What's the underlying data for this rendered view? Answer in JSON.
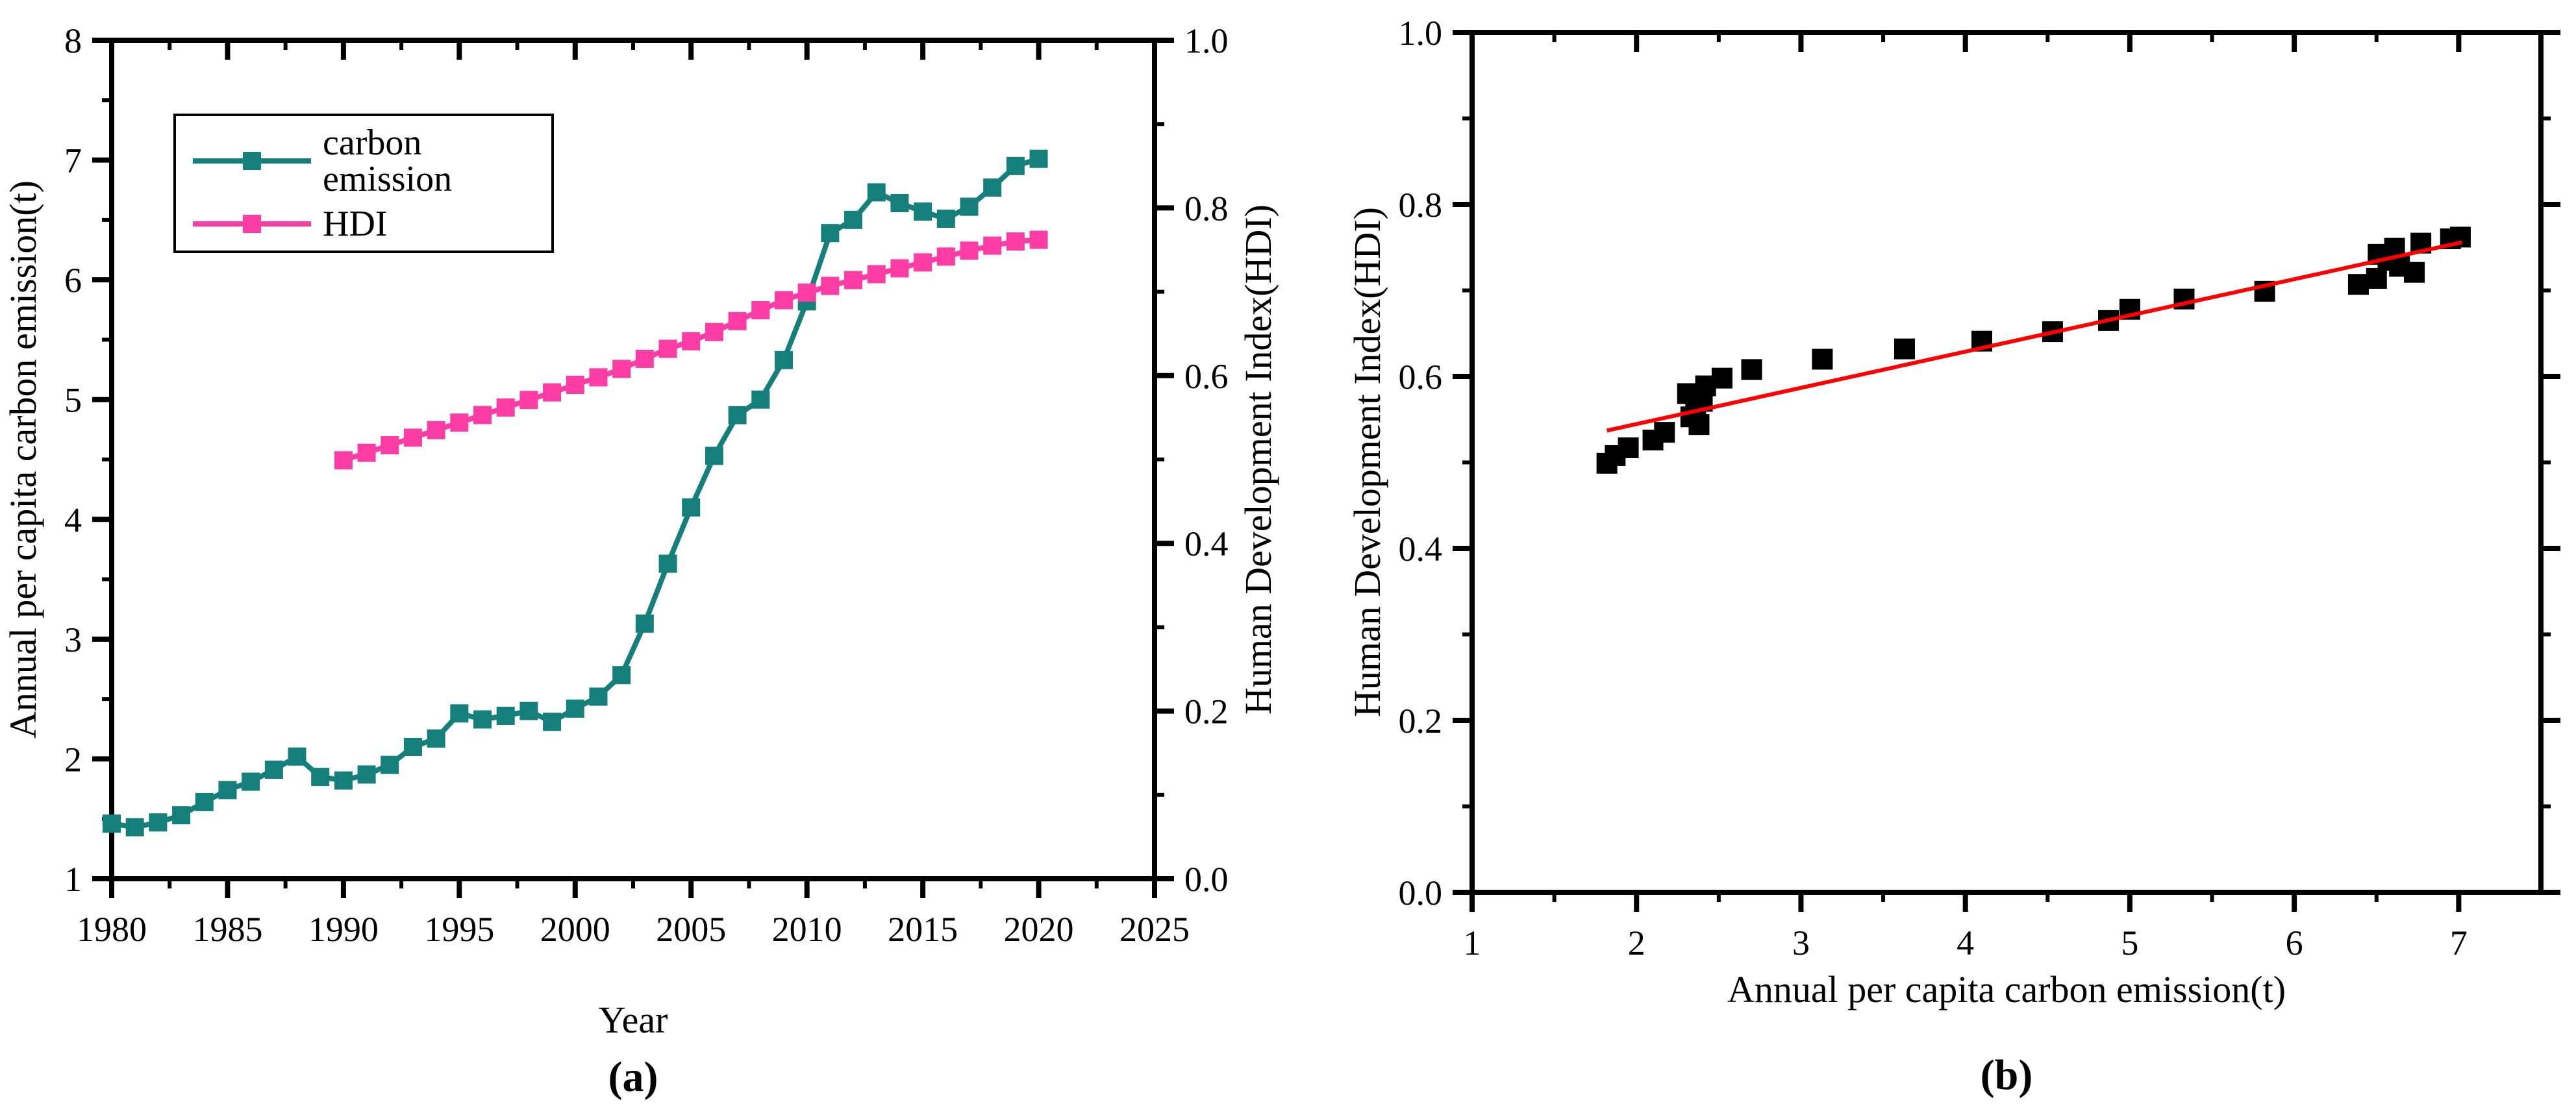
{
  "panel_a": {
    "xlabel": "Year",
    "ylabel_left": "Annual per capita carbon emission(t)",
    "ylabel_right": "Human Development Index(HDI)",
    "panel_label": "(a)",
    "legend": {
      "items": [
        {
          "label": "carbon emission",
          "color": "#157F7B",
          "marker": "square"
        },
        {
          "label": "HDI",
          "color": "#FB3DA5",
          "marker": "square"
        }
      ]
    }
  },
  "panel_b": {
    "xlabel": "Annual per capita carbon emission(t)",
    "ylabel": "Human Development Index(HDI)",
    "panel_label": "(b)",
    "marker_color": "#000000",
    "fit_line_color": "#FF0000"
  },
  "chart_data": [
    {
      "type": "line",
      "panel": "a",
      "title": "",
      "xlabel": "Year",
      "ylabel_left": "Annual per capita carbon emission(t)",
      "ylabel_right": "Human Development Index(HDI)",
      "xlim": [
        1980,
        2025
      ],
      "x_ticks": [
        1980,
        1985,
        1990,
        1995,
        2000,
        2005,
        2010,
        2015,
        2020,
        2025
      ],
      "ylim_left": [
        1,
        8
      ],
      "y_ticks_left": [
        1,
        2,
        3,
        4,
        5,
        6,
        7,
        8
      ],
      "ylim_right": [
        0.0,
        1.0
      ],
      "y_ticks_right": [
        0.0,
        0.2,
        0.4,
        0.6,
        0.8,
        1.0
      ],
      "grid": false,
      "legend_position": "upper-left",
      "series": [
        {
          "name": "carbon emission",
          "axis": "left",
          "color": "#157F7B",
          "marker": "square",
          "x": [
            1980,
            1981,
            1982,
            1983,
            1984,
            1985,
            1986,
            1987,
            1988,
            1989,
            1990,
            1991,
            1992,
            1993,
            1994,
            1995,
            1996,
            1997,
            1998,
            1999,
            2000,
            2001,
            2002,
            2003,
            2004,
            2005,
            2006,
            2007,
            2008,
            2009,
            2010,
            2011,
            2012,
            2013,
            2014,
            2015,
            2016,
            2017,
            2018,
            2019,
            2020
          ],
          "values": [
            1.46,
            1.43,
            1.47,
            1.53,
            1.64,
            1.74,
            1.81,
            1.91,
            2.02,
            1.85,
            1.82,
            1.87,
            1.95,
            2.1,
            2.17,
            2.38,
            2.33,
            2.36,
            2.4,
            2.31,
            2.42,
            2.52,
            2.7,
            3.13,
            3.63,
            4.1,
            4.53,
            4.87,
            5.0,
            5.33,
            5.82,
            6.39,
            6.5,
            6.73,
            6.64,
            6.57,
            6.51,
            6.61,
            6.77,
            6.95,
            7.01
          ]
        },
        {
          "name": "HDI",
          "axis": "right",
          "color": "#FB3DA5",
          "marker": "square",
          "x": [
            1990,
            1991,
            1992,
            1993,
            1994,
            1995,
            1996,
            1997,
            1998,
            1999,
            2000,
            2001,
            2002,
            2003,
            2004,
            2005,
            2006,
            2007,
            2008,
            2009,
            2010,
            2011,
            2012,
            2013,
            2014,
            2015,
            2016,
            2017,
            2018,
            2019,
            2020
          ],
          "values": [
            0.499,
            0.508,
            0.517,
            0.526,
            0.535,
            0.544,
            0.553,
            0.562,
            0.571,
            0.58,
            0.589,
            0.598,
            0.608,
            0.62,
            0.632,
            0.641,
            0.652,
            0.665,
            0.678,
            0.69,
            0.699,
            0.707,
            0.714,
            0.721,
            0.728,
            0.735,
            0.742,
            0.749,
            0.755,
            0.76,
            0.762
          ]
        }
      ]
    },
    {
      "type": "scatter",
      "panel": "b",
      "title": "",
      "xlabel": "Annual per capita carbon emission(t)",
      "ylabel": "Human Development Index(HDI)",
      "xlim": [
        1,
        7.5
      ],
      "x_ticks": [
        1,
        2,
        3,
        4,
        5,
        6,
        7
      ],
      "ylim": [
        0.0,
        1.0
      ],
      "y_ticks": [
        0.0,
        0.2,
        0.4,
        0.6,
        0.8,
        1.0
      ],
      "grid": false,
      "marker_color": "#000000",
      "points": [
        [
          1.82,
          0.499
        ],
        [
          1.87,
          0.508
        ],
        [
          1.95,
          0.517
        ],
        [
          2.1,
          0.526
        ],
        [
          2.17,
          0.535
        ],
        [
          2.38,
          0.544
        ],
        [
          2.33,
          0.553
        ],
        [
          2.36,
          0.562
        ],
        [
          2.4,
          0.571
        ],
        [
          2.31,
          0.58
        ],
        [
          2.42,
          0.589
        ],
        [
          2.52,
          0.598
        ],
        [
          2.7,
          0.608
        ],
        [
          3.13,
          0.62
        ],
        [
          3.63,
          0.632
        ],
        [
          4.1,
          0.641
        ],
        [
          4.53,
          0.652
        ],
        [
          4.87,
          0.665
        ],
        [
          5.0,
          0.678
        ],
        [
          5.33,
          0.69
        ],
        [
          5.82,
          0.699
        ],
        [
          6.39,
          0.707
        ],
        [
          6.5,
          0.714
        ],
        [
          6.73,
          0.721
        ],
        [
          6.64,
          0.728
        ],
        [
          6.57,
          0.735
        ],
        [
          6.51,
          0.742
        ],
        [
          6.61,
          0.749
        ],
        [
          6.77,
          0.755
        ],
        [
          6.95,
          0.76
        ],
        [
          7.01,
          0.762
        ]
      ],
      "fit_line": {
        "color": "#FF0000",
        "x_start": 1.82,
        "y_start": 0.537,
        "x_end": 7.02,
        "y_end": 0.756
      }
    }
  ]
}
